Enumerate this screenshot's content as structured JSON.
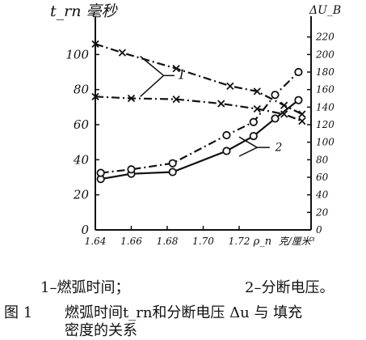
{
  "chart_data": {
    "type": "line",
    "x_ticks": [
      "1.64",
      "1.66",
      "1.68",
      "1.70",
      "1.72",
      "ρ_n",
      "克/厘米³"
    ],
    "x_tick_values": [
      1.64,
      1.66,
      1.68,
      1.7,
      1.72
    ],
    "x_axis_label": "克/厘米³",
    "x_symbol": "ρ_n",
    "xlim": [
      1.64,
      1.76
    ],
    "left_axis": {
      "label": "t_rn 毫秒",
      "ticks": [
        0,
        20,
        40,
        60,
        80,
        100
      ],
      "ylim": [
        0,
        120
      ]
    },
    "right_axis": {
      "label": "ΔU_B",
      "ticks": [
        0,
        20,
        40,
        60,
        80,
        100,
        120,
        140,
        160,
        180,
        200,
        220
      ],
      "ylim": [
        0,
        240
      ]
    },
    "series": [
      {
        "name": "1",
        "axis": "left",
        "marker": "x",
        "style": "dash",
        "x": [
          1.64,
          1.655,
          1.685,
          1.715,
          1.73,
          1.745,
          1.755
        ],
        "y": [
          106,
          101,
          92,
          82,
          79,
          71,
          66
        ]
      },
      {
        "name": "1",
        "axis": "left",
        "marker": "x",
        "style": "dash",
        "x": [
          1.64,
          1.66,
          1.685,
          1.71,
          1.73,
          1.745,
          1.755
        ],
        "y": [
          76,
          75,
          74.5,
          72,
          69,
          66,
          62
        ]
      },
      {
        "name": "2",
        "axis": "right",
        "marker": "o",
        "style": "solid",
        "x": [
          1.643,
          1.66,
          1.683,
          1.713,
          1.728,
          1.74,
          1.753
        ],
        "y": [
          58,
          64,
          66,
          90,
          107,
          127,
          148
        ]
      },
      {
        "name": "2",
        "axis": "right",
        "marker": "o",
        "style": "dash",
        "x": [
          1.643,
          1.66,
          1.683,
          1.713,
          1.728,
          1.74,
          1.753
        ],
        "y": [
          65,
          69,
          76,
          108,
          123,
          154,
          180
        ]
      }
    ],
    "curve_labels": [
      "1",
      "2"
    ]
  },
  "caption": {
    "legend_1": "1–燃弧时间；",
    "legend_2": "2–分断电压。",
    "fig_no": "图 1",
    "line1": "燃弧时间t_rn和分断电压 Δu 与 填充",
    "line2": "密度的关系"
  }
}
